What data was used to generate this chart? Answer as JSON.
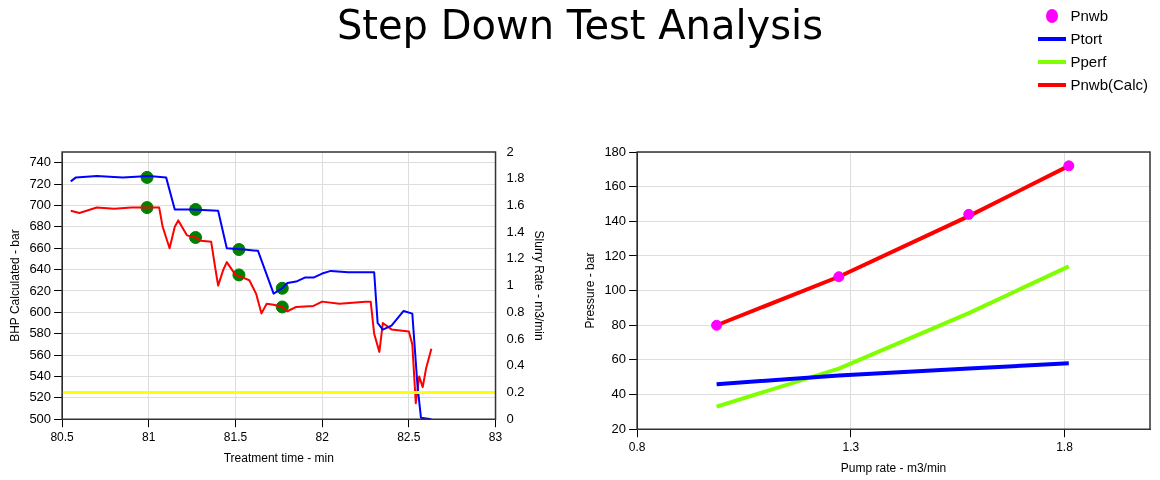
{
  "chart_data": [
    {
      "type": "line",
      "title": "Step Down Test Analysis",
      "xlabel": "Treatment time - min",
      "ylabel": "BHP Calculated - bar",
      "y2label": "Slurry Rate - m3/min",
      "xlim": [
        80.5,
        83
      ],
      "xticks": [
        80.5,
        81,
        81.5,
        82,
        82.5,
        83
      ],
      "ylim": [
        500,
        750
      ],
      "yticks": [
        500,
        520,
        540,
        560,
        580,
        600,
        620,
        640,
        660,
        680,
        700,
        720,
        740
      ],
      "y2lim": [
        0,
        2
      ],
      "y2ticks": [
        0,
        0.2,
        0.4,
        0.6,
        0.8,
        1,
        1.2,
        1.4,
        1.6,
        1.8,
        2
      ],
      "grid": true,
      "legend": false,
      "series": [
        {
          "type": "line",
          "axis": "y2",
          "color": "#0000ff",
          "x": [
            80.55,
            80.58,
            80.7,
            80.85,
            81.0,
            81.1,
            81.15,
            81.25,
            81.4,
            81.45,
            81.55,
            81.63,
            81.72,
            81.77,
            81.8,
            81.85,
            81.9,
            81.95,
            82.0,
            82.05,
            82.15,
            82.3,
            82.32,
            82.35,
            82.4,
            82.47,
            82.52,
            82.55,
            82.57,
            82.63
          ],
          "values": [
            1.78,
            1.81,
            1.82,
            1.81,
            1.82,
            1.81,
            1.57,
            1.57,
            1.56,
            1.28,
            1.27,
            1.26,
            0.94,
            0.98,
            1.02,
            1.03,
            1.06,
            1.06,
            1.09,
            1.11,
            1.1,
            1.1,
            0.72,
            0.67,
            0.7,
            0.81,
            0.79,
            0.25,
            0.01,
            0
          ]
        },
        {
          "type": "line",
          "color": "#ff0000",
          "x": [
            80.55,
            80.6,
            80.7,
            80.8,
            80.9,
            81.0,
            81.06,
            81.08,
            81.12,
            81.15,
            81.17,
            81.22,
            81.27,
            81.3,
            81.36,
            81.38,
            81.4,
            81.43,
            81.45,
            81.5,
            81.55,
            81.58,
            81.62,
            81.65,
            81.68,
            81.72,
            81.77,
            81.8,
            81.85,
            81.95,
            82.0,
            82.1,
            82.25,
            82.28,
            82.3,
            82.33,
            82.35,
            82.4,
            82.5,
            82.52,
            82.54,
            82.56,
            82.58,
            82.6,
            82.63
          ],
          "values": [
            695,
            693,
            698,
            697,
            698,
            698,
            698,
            680,
            660,
            680,
            686,
            672,
            670,
            667,
            666,
            645,
            625,
            640,
            647,
            635,
            632,
            630,
            617,
            599,
            608,
            607,
            605,
            601,
            605,
            606,
            610,
            608,
            610,
            610,
            580,
            563,
            590,
            584,
            582,
            570,
            515,
            540,
            530,
            548,
            566
          ]
        },
        {
          "type": "scatter",
          "axis": "y2",
          "color": "#008000",
          "x": [
            80.99,
            81.27,
            81.52,
            81.77
          ],
          "values": [
            1.81,
            1.57,
            1.27,
            0.98
          ]
        },
        {
          "type": "scatter",
          "color": "#008000",
          "x": [
            80.99,
            81.27,
            81.52,
            81.77
          ],
          "values": [
            698,
            670,
            635,
            605
          ]
        }
      ],
      "ref_lines": [
        {
          "axis": "y",
          "value": 525,
          "color": "#ffff00"
        }
      ]
    },
    {
      "type": "line",
      "xlabel": "Pump rate - m3/min",
      "ylabel": "Pressure - bar",
      "xlim": [
        0.8,
        2
      ],
      "xticks": [
        0.8,
        1.3,
        1.8
      ],
      "ylim": [
        20,
        180
      ],
      "yticks": [
        20,
        40,
        60,
        80,
        100,
        120,
        140,
        160,
        180
      ],
      "grid": true,
      "legend": "top right",
      "series": [
        {
          "type": "scatter",
          "name": "Pnwb",
          "color": "#ff00ff",
          "x": [
            0.986,
            1.272,
            1.576,
            1.81
          ],
          "values": [
            80,
            108,
            144,
            172
          ]
        },
        {
          "type": "line",
          "name": "Ptort",
          "color": "#0000ff",
          "x": [
            0.986,
            1.272,
            1.576,
            1.81
          ],
          "values": [
            46,
            51,
            55,
            58
          ]
        },
        {
          "type": "line",
          "name": "Pperf",
          "color": "#80ff00",
          "x": [
            0.986,
            1.272,
            1.576,
            1.81
          ],
          "values": [
            33,
            55,
            87,
            114
          ]
        },
        {
          "type": "line",
          "name": "Pnwb(Calc)",
          "color": "#ff0000",
          "x": [
            0.986,
            1.272,
            1.576,
            1.81
          ],
          "values": [
            80,
            108,
            143,
            172
          ]
        }
      ]
    }
  ]
}
